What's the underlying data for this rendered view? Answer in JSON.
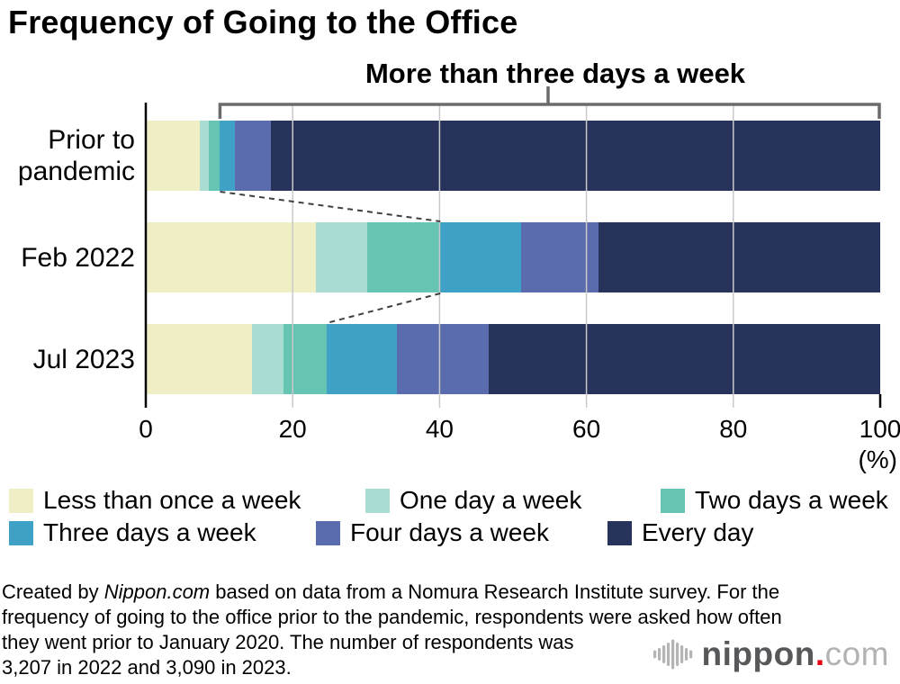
{
  "title": "Frequency of Going to the Office",
  "annotation": {
    "label": "More than three days a week"
  },
  "chart_data": {
    "type": "bar",
    "orientation": "horizontal",
    "stacked": true,
    "categories": [
      "Prior to pandemic",
      "Feb 2022",
      "Jul 2023"
    ],
    "series": [
      {
        "name": "Less than once a week",
        "color": "#f0eec5",
        "values": [
          7.4,
          23.2,
          14.4
        ]
      },
      {
        "name": "One day a week",
        "color": "#a9dcd2",
        "values": [
          1.2,
          7.0,
          4.3
        ]
      },
      {
        "name": "Two days a week",
        "color": "#65c5b2",
        "values": [
          1.5,
          9.9,
          5.9
        ]
      },
      {
        "name": "Three days a week",
        "color": "#3fa1c6",
        "values": [
          2.0,
          11.0,
          9.6
        ]
      },
      {
        "name": "Four days a week",
        "color": "#5a6cad",
        "values": [
          4.9,
          10.5,
          12.5
        ]
      },
      {
        "name": "Every day",
        "color": "#28335b",
        "values": [
          83.0,
          38.4,
          53.3
        ]
      }
    ],
    "x_ticks": [
      0,
      20,
      40,
      60,
      80,
      100
    ],
    "xlim": [
      0,
      100
    ],
    "unit_label": "(%)",
    "grid": true,
    "legend_position": "bottom",
    "annotation_bracket": {
      "start_series": "Three days a week",
      "end_percent": 100,
      "connects_bars_with_dashed_lines": true
    }
  },
  "footer": {
    "line1_prefix": "Created by ",
    "line1_source": "Nippon.com",
    "line1_rest": " based on data from a Nomura Research Institute survey. For the",
    "line2": "frequency of going to the office prior to the pandemic, respondents were asked how often",
    "line3": "they went prior to January 2020. The number of respondents was",
    "line4": "3,207 in 2022 and 3,090 in 2023."
  },
  "logo": {
    "brand": "nippon",
    "dot": ".",
    "tld": "com",
    "icon": "sound-wave-icon",
    "brand_color": "#57585a",
    "dot_color": "#e60012",
    "tld_color": "#b1b3b5"
  },
  "colors": {
    "bracket": "#6b6b6b",
    "grid": "#c9c9c9",
    "axis": "#000000",
    "dashed_connector": "#3f3f3f"
  }
}
